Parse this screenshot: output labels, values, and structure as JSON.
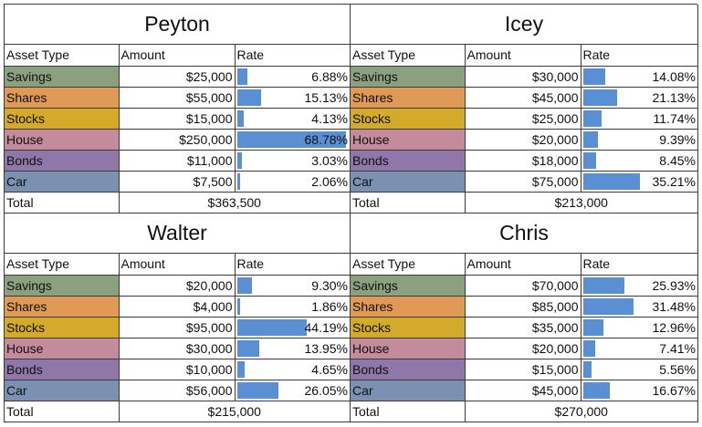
{
  "headers": {
    "asset": "Asset Type",
    "amount": "Amount",
    "rate": "Rate"
  },
  "total_label": "Total",
  "colors": {
    "Savings": "#8aa07e",
    "Shares": "#e09a55",
    "Stocks": "#d4aa2b",
    "House": "#c38b9c",
    "Bonds": "#9077a9",
    "Car": "#7a91b2",
    "bar": "#5b8fd4"
  },
  "people": [
    {
      "name": "Peyton",
      "total": "$363,500",
      "rows": [
        {
          "asset": "Savings",
          "amount": "$25,000",
          "rate": "6.88%",
          "rate_value": 0.0688
        },
        {
          "asset": "Shares",
          "amount": "$55,000",
          "rate": "15.13%",
          "rate_value": 0.1513
        },
        {
          "asset": "Stocks",
          "amount": "$15,000",
          "rate": "4.13%",
          "rate_value": 0.0413
        },
        {
          "asset": "House",
          "amount": "$250,000",
          "rate": "68.78%",
          "rate_value": 0.6878
        },
        {
          "asset": "Bonds",
          "amount": "$11,000",
          "rate": "3.03%",
          "rate_value": 0.0303
        },
        {
          "asset": "Car",
          "amount": "$7,500",
          "rate": "2.06%",
          "rate_value": 0.0206
        }
      ]
    },
    {
      "name": "Icey",
      "total": "$213,000",
      "rows": [
        {
          "asset": "Savings",
          "amount": "$30,000",
          "rate": "14.08%",
          "rate_value": 0.1408
        },
        {
          "asset": "Shares",
          "amount": "$45,000",
          "rate": "21.13%",
          "rate_value": 0.2113
        },
        {
          "asset": "Stocks",
          "amount": "$25,000",
          "rate": "11.74%",
          "rate_value": 0.1174
        },
        {
          "asset": "House",
          "amount": "$20,000",
          "rate": "9.39%",
          "rate_value": 0.0939
        },
        {
          "asset": "Bonds",
          "amount": "$18,000",
          "rate": "8.45%",
          "rate_value": 0.0845
        },
        {
          "asset": "Car",
          "amount": "$75,000",
          "rate": "35.21%",
          "rate_value": 0.3521
        }
      ]
    },
    {
      "name": "Walter",
      "total": "$215,000",
      "rows": [
        {
          "asset": "Savings",
          "amount": "$20,000",
          "rate": "9.30%",
          "rate_value": 0.093
        },
        {
          "asset": "Shares",
          "amount": "$4,000",
          "rate": "1.86%",
          "rate_value": 0.0186
        },
        {
          "asset": "Stocks",
          "amount": "$95,000",
          "rate": "44.19%",
          "rate_value": 0.4419
        },
        {
          "asset": "House",
          "amount": "$30,000",
          "rate": "13.95%",
          "rate_value": 0.1395
        },
        {
          "asset": "Bonds",
          "amount": "$10,000",
          "rate": "4.65%",
          "rate_value": 0.0465
        },
        {
          "asset": "Car",
          "amount": "$56,000",
          "rate": "26.05%",
          "rate_value": 0.2605
        }
      ]
    },
    {
      "name": "Chris",
      "total": "$270,000",
      "rows": [
        {
          "asset": "Savings",
          "amount": "$70,000",
          "rate": "25.93%",
          "rate_value": 0.2593
        },
        {
          "asset": "Shares",
          "amount": "$85,000",
          "rate": "31.48%",
          "rate_value": 0.3148
        },
        {
          "asset": "Stocks",
          "amount": "$35,000",
          "rate": "12.96%",
          "rate_value": 0.1296
        },
        {
          "asset": "House",
          "amount": "$20,000",
          "rate": "7.41%",
          "rate_value": 0.0741
        },
        {
          "asset": "Bonds",
          "amount": "$15,000",
          "rate": "5.56%",
          "rate_value": 0.0556
        },
        {
          "asset": "Car",
          "amount": "$45,000",
          "rate": "16.67%",
          "rate_value": 0.1667
        }
      ]
    }
  ]
}
